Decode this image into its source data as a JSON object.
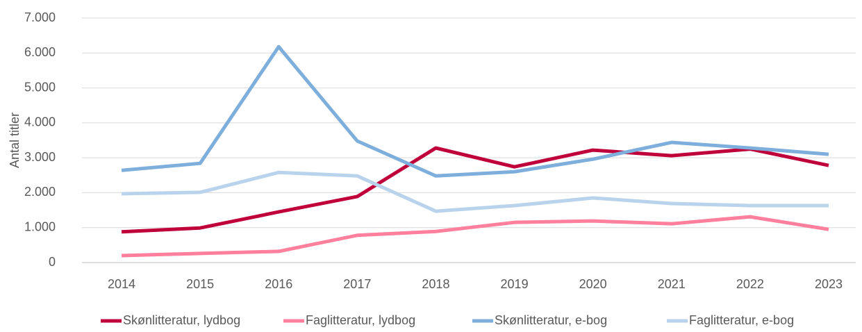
{
  "chart_data": {
    "type": "line",
    "y_label": "Antal titler",
    "categories": [
      "2014",
      "2015",
      "2016",
      "2017",
      "2018",
      "2019",
      "2020",
      "2021",
      "2022",
      "2023"
    ],
    "series": [
      {
        "name": "Skønlitteratur, lydbog",
        "color": "#c0003a",
        "values": [
          880,
          990,
          1450,
          1890,
          3280,
          2740,
          3220,
          3060,
          3250,
          2780
        ]
      },
      {
        "name": "Faglitteratur, lydbog",
        "color": "#ff7f9c",
        "values": [
          200,
          260,
          320,
          780,
          890,
          1150,
          1190,
          1110,
          1310,
          950
        ]
      },
      {
        "name": "Skønlitteratur, e-bog",
        "color": "#7eaedb",
        "values": [
          2640,
          2840,
          6180,
          3480,
          2480,
          2600,
          2960,
          3440,
          3280,
          3100
        ]
      },
      {
        "name": "Faglitteratur, e-bog",
        "color": "#b8d3eb",
        "values": [
          1970,
          2010,
          2580,
          2480,
          1470,
          1630,
          1850,
          1690,
          1630,
          1630
        ]
      }
    ],
    "ylim": [
      0,
      7000
    ],
    "yticks": [
      0,
      {
        "value": 1000,
        "label": "1.000"
      },
      {
        "value": 2000,
        "label": "2.000"
      },
      {
        "value": 3000,
        "label": "3.000"
      },
      {
        "value": 4000,
        "label": "4.000"
      },
      {
        "value": 5000,
        "label": "5.000"
      },
      {
        "value": 6000,
        "label": "6.000"
      },
      {
        "value": 7000,
        "label": "7.000"
      }
    ],
    "grid": true,
    "legend": "bottom"
  }
}
